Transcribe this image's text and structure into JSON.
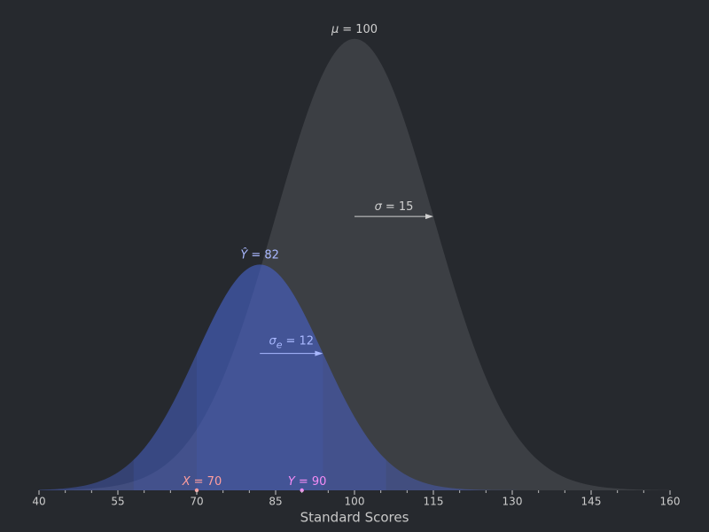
{
  "chart_data": {
    "type": "normal",
    "xlabel": "Standard Scores",
    "xlim": [
      40,
      160
    ],
    "xticks": [
      40,
      55,
      70,
      85,
      100,
      115,
      130,
      145,
      160
    ],
    "xminorticks": [
      45,
      50,
      60,
      65,
      75,
      80,
      90,
      95,
      105,
      110,
      120,
      125,
      135,
      140,
      150,
      155
    ],
    "ylim": [
      0,
      0.028
    ],
    "series": [
      {
        "mean": 100,
        "sd": 15,
        "peak": 0.0266,
        "color": "#3c3f44",
        "text_color": "#d0d0d0",
        "mean_symbol": "μ",
        "mean_text": "= 100",
        "sd_symbol": "σ",
        "sd_text": "= 15"
      },
      {
        "mean": 82,
        "sd": 12,
        "peak": 0.0133,
        "color": "#4a62c8",
        "text_color": "#a9b8ff",
        "mean_symbol": "Ŷ",
        "mean_text": "= 82",
        "sd_symbol": "σ",
        "sd_subscript": "e",
        "sd_text": "= 12"
      }
    ],
    "points": [
      {
        "symbol": "X",
        "text": "= 70",
        "x": 70,
        "color": "#ff9e9e"
      },
      {
        "symbol": "Y",
        "text": "= 90",
        "x": 90,
        "color": "#f58cf5"
      }
    ]
  }
}
